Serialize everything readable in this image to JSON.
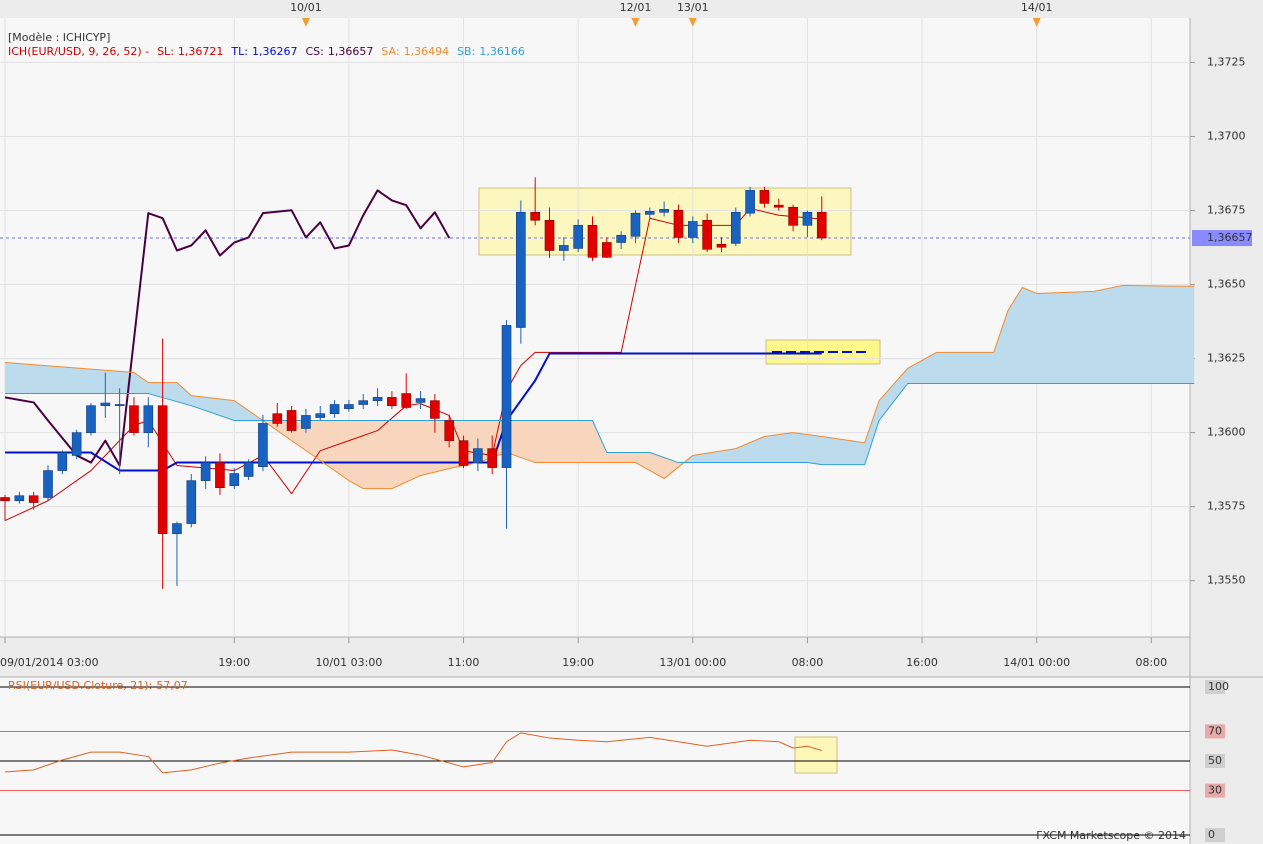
{
  "chart_data": [
    {
      "type": "candlestick",
      "title": "[Modèle : ICHICYP]",
      "subtitle": "ICH(EUR/USD, 9, 26, 52) -",
      "x": [
        0,
        1,
        2,
        3,
        4,
        5,
        6,
        7,
        8,
        9,
        10,
        11,
        12,
        13,
        14,
        15,
        16,
        17,
        18,
        19,
        20,
        21,
        22,
        23,
        24,
        25,
        26,
        27,
        28,
        29,
        30,
        31,
        32,
        33,
        34,
        35,
        36,
        37,
        38,
        39,
        40,
        41,
        42,
        43,
        44,
        45,
        46,
        47,
        48,
        49,
        50,
        51,
        52,
        53,
        54,
        55,
        56,
        57
      ],
      "open": [
        1.35781,
        1.3577,
        1.35787,
        1.35781,
        1.35872,
        1.35923,
        1.36,
        1.36091,
        1.36091,
        1.36091,
        1.36,
        1.36091,
        1.35659,
        1.35693,
        1.35838,
        1.35899,
        1.35821,
        1.35852,
        1.35885,
        1.36064,
        1.36075,
        1.36014,
        1.36051,
        1.36064,
        1.36081,
        1.36095,
        1.36108,
        1.36119,
        1.36132,
        1.36102,
        1.36108,
        1.36041,
        1.35973,
        1.35899,
        1.35946,
        1.35882,
        1.36355,
        1.36744,
        1.36717,
        1.36615,
        1.36622,
        1.367,
        1.36642,
        1.36642,
        1.36663,
        1.36737,
        1.36744,
        1.36751,
        1.36659,
        1.36717,
        1.36636,
        1.36639,
        1.36741,
        1.36818,
        1.36768,
        1.36761,
        1.367,
        1.36744
      ],
      "high": [
        1.3579,
        1.358,
        1.358,
        1.3589,
        1.3594,
        1.3601,
        1.361,
        1.36203,
        1.3615,
        1.3612,
        1.3612,
        1.36318,
        1.357,
        1.3586,
        1.3592,
        1.3593,
        1.3588,
        1.3591,
        1.3606,
        1.361,
        1.3609,
        1.3608,
        1.3609,
        1.3611,
        1.3611,
        1.3613,
        1.3615,
        1.3614,
        1.362,
        1.3614,
        1.3613,
        1.3606,
        1.3599,
        1.3598,
        1.3599,
        1.3638,
        1.36784,
        1.36862,
        1.3676,
        1.3666,
        1.3672,
        1.3673,
        1.3666,
        1.3668,
        1.3675,
        1.3676,
        1.3678,
        1.3677,
        1.3673,
        1.3674,
        1.3666,
        1.3676,
        1.3683,
        1.3683,
        1.3679,
        1.3677,
        1.3675,
        1.36798
      ],
      "low": [
        1.35703,
        1.3576,
        1.3574,
        1.3577,
        1.3586,
        1.3591,
        1.3599,
        1.3605,
        1.3586,
        1.3599,
        1.3595,
        1.35473,
        1.35483,
        1.3568,
        1.3581,
        1.3579,
        1.3581,
        1.3584,
        1.3587,
        1.3602,
        1.36,
        1.36,
        1.3604,
        1.3605,
        1.3607,
        1.3608,
        1.3609,
        1.3608,
        1.3608,
        1.3608,
        1.36,
        1.3595,
        1.3588,
        1.3587,
        1.3586,
        1.35676,
        1.363,
        1.367,
        1.3659,
        1.3658,
        1.3661,
        1.3658,
        1.3659,
        1.3662,
        1.3664,
        1.3672,
        1.3673,
        1.3664,
        1.3664,
        1.3661,
        1.3661,
        1.3663,
        1.3673,
        1.3676,
        1.3675,
        1.3668,
        1.3666,
        1.3665
      ],
      "close": [
        1.3577,
        1.35787,
        1.35764,
        1.35872,
        1.35933,
        1.36,
        1.36091,
        1.361,
        1.36095,
        1.36,
        1.36091,
        1.35659,
        1.35693,
        1.35838,
        1.35899,
        1.35814,
        1.35862,
        1.35899,
        1.36031,
        1.36031,
        1.36007,
        1.36058,
        1.36064,
        1.36095,
        1.36095,
        1.36108,
        1.36119,
        1.36091,
        1.36085,
        1.36115,
        1.36048,
        1.35973,
        1.35889,
        1.35946,
        1.35882,
        1.36362,
        1.36744,
        1.36717,
        1.36615,
        1.36632,
        1.367,
        1.36592,
        1.36592,
        1.36666,
        1.36741,
        1.36747,
        1.36754,
        1.36659,
        1.36713,
        1.36619,
        1.36626,
        1.36744,
        1.36818,
        1.36774,
        1.36761,
        1.367,
        1.36744,
        1.36657
      ],
      "up_color": "#1a62c0",
      "down_color": "#e00000",
      "series": [
        {
          "name": "SL:",
          "value_label": "1,36721",
          "color": "#d00000",
          "width": 1,
          "x": [
            0,
            3,
            6,
            9,
            10,
            12,
            16,
            18,
            20,
            22,
            24,
            26,
            28,
            29,
            31,
            32,
            34,
            35,
            36,
            37,
            43,
            45,
            47,
            51,
            52,
            54,
            57
          ],
          "values": [
            1.35703,
            1.3577,
            1.35872,
            1.36024,
            1.36041,
            1.35889,
            1.35872,
            1.35923,
            1.35794,
            1.35939,
            1.35973,
            1.36007,
            1.36091,
            1.36098,
            1.36058,
            1.35939,
            1.35923,
            1.36142,
            1.36227,
            1.36271,
            1.36271,
            1.36724,
            1.367,
            1.367,
            1.36757,
            1.36734,
            1.36721
          ]
        },
        {
          "name": "TL:",
          "value_label": "1,36267",
          "color": "#0010c8",
          "width": 2,
          "x": [
            0,
            6,
            8,
            11,
            12,
            34,
            35,
            37,
            38,
            57
          ],
          "values": [
            1.35933,
            1.35933,
            1.35872,
            1.35872,
            1.35899,
            1.35899,
            1.36041,
            1.36176,
            1.36267,
            1.36267
          ]
        },
        {
          "name": "CS:",
          "value_label": "1,36657",
          "color": "#4a0040",
          "width": 2,
          "x": [
            0,
            2,
            3,
            5,
            6,
            7,
            8,
            10,
            11,
            12,
            13,
            14,
            15,
            16,
            17,
            18,
            20,
            21,
            22,
            23,
            24,
            25,
            26,
            27,
            28,
            29,
            30,
            31
          ],
          "values": [
            1.36119,
            1.36102,
            1.36041,
            1.35923,
            1.35899,
            1.35973,
            1.35889,
            1.36741,
            1.36724,
            1.36615,
            1.36632,
            1.36683,
            1.36598,
            1.36642,
            1.36659,
            1.36741,
            1.36751,
            1.36659,
            1.3671,
            1.36622,
            1.36632,
            1.36734,
            1.36818,
            1.36784,
            1.36768,
            1.3669,
            1.36744,
            1.36657
          ]
        },
        {
          "name": "SA:",
          "value_label": "1,36494",
          "color": "#f08a30",
          "width": 1,
          "x": [
            0,
            9,
            10,
            12,
            13,
            16,
            18,
            20,
            22,
            24,
            25,
            27,
            29,
            31,
            33,
            35,
            37,
            40,
            44,
            46,
            48,
            51,
            53,
            55,
            57,
            60,
            61,
            63,
            65,
            69,
            70,
            71,
            72,
            76,
            78,
            83
          ],
          "values": [
            1.36237,
            1.36203,
            1.36169,
            1.36169,
            1.36125,
            1.36108,
            1.36041,
            1.35973,
            1.35906,
            1.35838,
            1.35811,
            1.35811,
            1.35855,
            1.35879,
            1.35899,
            1.35933,
            1.35899,
            1.35899,
            1.35899,
            1.35845,
            1.35923,
            1.35946,
            1.35987,
            1.36,
            1.35987,
            1.35966,
            1.36108,
            1.36217,
            1.36271,
            1.36271,
            1.36413,
            1.3649,
            1.3647,
            1.36477,
            1.36497,
            1.36494
          ]
        },
        {
          "name": "SB:",
          "value_label": "1,36166",
          "color": "#30a0d8",
          "width": 1,
          "x": [
            0,
            10,
            13,
            16,
            41,
            42,
            45,
            47,
            56,
            57,
            60,
            61,
            63,
            83
          ],
          "values": [
            1.36132,
            1.36132,
            1.36091,
            1.36041,
            1.36041,
            1.35933,
            1.35933,
            1.35899,
            1.35899,
            1.35892,
            1.35892,
            1.36041,
            1.36166,
            1.36166
          ]
        }
      ],
      "cloud_up_color": "#bcdcee",
      "cloud_down_color": "#f7d6bd",
      "last_price": {
        "value": 1.36657,
        "label": "1,36657"
      },
      "xlim": [
        -0.35,
        82.7
      ],
      "xticks": [
        {
          "value": 0,
          "label": "09/01/2014 03:00"
        },
        {
          "value": 16,
          "label": "19:00"
        },
        {
          "value": 24,
          "label": "10/01 03:00"
        },
        {
          "value": 32,
          "label": "11:00"
        },
        {
          "value": 40,
          "label": "19:00"
        },
        {
          "value": 48,
          "label": "13/01 00:00"
        },
        {
          "value": 56,
          "label": "08:00"
        },
        {
          "value": 64,
          "label": "16:00"
        },
        {
          "value": 72,
          "label": "14/01 00:00"
        },
        {
          "value": 80,
          "label": "08:00"
        }
      ],
      "top_ticks": [
        {
          "value": 21,
          "label": "10/01"
        },
        {
          "value": 44,
          "label": "12/01"
        },
        {
          "value": 48,
          "label": "13/01"
        },
        {
          "value": 72,
          "label": "14/01"
        }
      ],
      "ylim": [
        1.3531,
        1.374
      ],
      "yticks": [
        {
          "value": 1.355,
          "label": "1,3550"
        },
        {
          "value": 1.3575,
          "label": "1,3575"
        },
        {
          "value": 1.36,
          "label": "1,3600"
        },
        {
          "value": 1.3625,
          "label": "1,3625"
        },
        {
          "value": 1.365,
          "label": "1,3650"
        },
        {
          "value": 1.3675,
          "label": "1,3675"
        },
        {
          "value": 1.37,
          "label": "1,3700"
        },
        {
          "value": 1.3725,
          "label": "1,3725"
        }
      ],
      "grid": true
    },
    {
      "type": "line",
      "series": [
        {
          "name": "RSI(EUR/USD.Cloture, 21):",
          "value_label": "57,07",
          "color": "#e06020",
          "x": [
            0,
            2,
            4,
            6,
            8,
            10,
            11,
            13,
            15,
            17,
            20,
            24,
            27,
            29,
            32,
            34,
            35,
            36,
            38,
            40,
            42,
            45,
            47,
            49,
            52,
            54,
            55,
            56,
            57
          ],
          "values": [
            42.6,
            44,
            50.7,
            56,
            56,
            53,
            42,
            44,
            48.6,
            52,
            56,
            56,
            57.4,
            54,
            46,
            49,
            63,
            69,
            65.5,
            64,
            63,
            66,
            63,
            60,
            64,
            63,
            58.8,
            60,
            57.07
          ]
        }
      ],
      "xlim": [
        -0.35,
        82.7
      ],
      "ylim": [
        0,
        100
      ],
      "yticks": [
        100,
        70,
        50,
        30,
        0
      ],
      "tick_colors": [
        "#000000",
        "#e03030",
        "#000000",
        "#e03030",
        "#000000"
      ],
      "footer": "FXCM Marketscope © 2014"
    }
  ]
}
